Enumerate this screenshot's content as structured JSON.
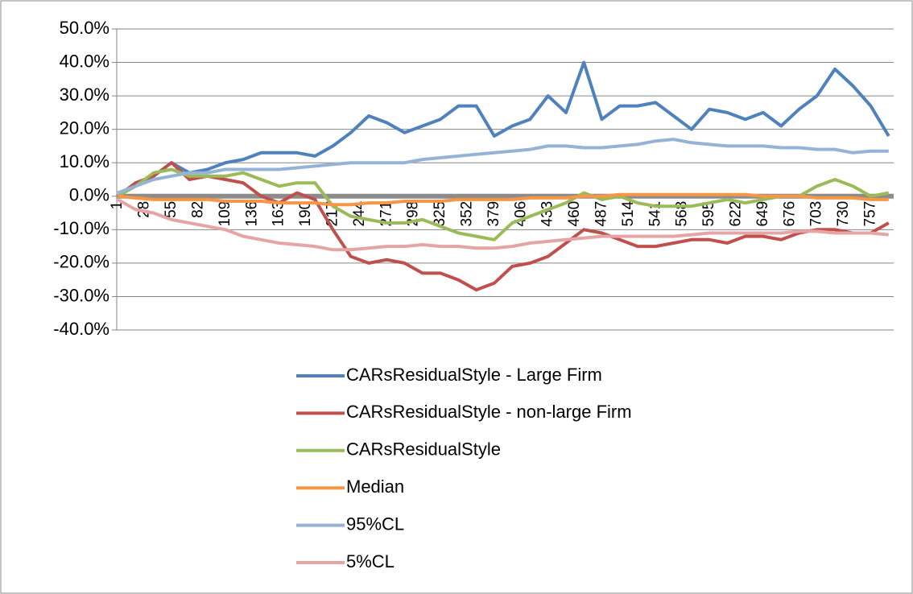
{
  "chart_data": {
    "type": "line",
    "x": [
      1,
      19,
      37,
      55,
      73,
      91,
      109,
      127,
      145,
      163,
      181,
      199,
      217,
      235,
      253,
      271,
      289,
      307,
      325,
      343,
      361,
      379,
      397,
      415,
      433,
      451,
      469,
      487,
      505,
      523,
      541,
      559,
      577,
      595,
      613,
      631,
      649,
      667,
      685,
      703,
      721,
      739,
      757,
      775
    ],
    "xlim": [
      0,
      780
    ],
    "xticks": [
      1,
      28,
      55,
      82,
      109,
      136,
      163,
      190,
      217,
      244,
      271,
      298,
      325,
      352,
      379,
      406,
      433,
      460,
      487,
      514,
      541,
      568,
      595,
      622,
      649,
      676,
      703,
      730,
      757
    ],
    "ylim": [
      -40,
      50
    ],
    "yticks": [
      {
        "value": 50,
        "label": "50.0%"
      },
      {
        "value": 40,
        "label": "40.0%"
      },
      {
        "value": 30,
        "label": "30.0%"
      },
      {
        "value": 20,
        "label": "20.0%"
      },
      {
        "value": 10,
        "label": "10.0%"
      },
      {
        "value": 0,
        "label": "0.0%"
      },
      {
        "value": -10,
        "label": "-10.0%"
      },
      {
        "value": -20,
        "label": "-20.0%"
      },
      {
        "value": -30,
        "label": "-30.0%"
      },
      {
        "value": -40,
        "label": "-40.0%"
      }
    ],
    "grid": true,
    "legend": "bottom",
    "series": [
      {
        "name": "CARsResidualStyle - Large Firm",
        "color": "#4f81bd",
        "values": [
          0,
          4,
          6,
          10,
          7,
          8,
          10,
          11,
          13,
          13,
          13,
          12,
          15,
          19,
          24,
          22,
          19,
          21,
          23,
          27,
          27,
          18,
          21,
          23,
          30,
          25,
          40,
          23,
          27,
          27,
          28,
          24,
          20,
          26,
          25,
          23,
          25,
          21,
          26,
          30,
          38,
          33,
          27,
          18
        ]
      },
      {
        "name": "CARsResidualStyle - non-large Firm",
        "color": "#c0504d",
        "values": [
          0,
          4,
          6,
          10,
          5,
          6,
          5,
          4,
          0,
          -2,
          1,
          -1,
          -10,
          -18,
          -20,
          -19,
          -20,
          -23,
          -23,
          -25,
          -28,
          -26,
          -21,
          -20,
          -18,
          -14,
          -10,
          -11,
          -13,
          -15,
          -15,
          -14,
          -13,
          -13,
          -14,
          -12,
          -12,
          -13,
          -11,
          -10,
          -10,
          -11,
          -11,
          -8
        ]
      },
      {
        "name": "CARsResidualStyle",
        "color": "#9bbb59",
        "values": [
          0,
          3,
          7,
          8,
          6,
          6,
          6,
          7,
          5,
          3,
          4,
          4,
          -3,
          -6,
          -7,
          -8,
          -8,
          -7,
          -9,
          -11,
          -12,
          -13,
          -8,
          -6,
          -4,
          -2,
          1,
          -1,
          0,
          -2,
          -3,
          -3,
          -3,
          -2,
          -1,
          -2,
          -1,
          0,
          0,
          3,
          5,
          3,
          0,
          1
        ]
      },
      {
        "name": "Median",
        "color": "#f79646",
        "values": [
          0,
          -0.5,
          -1,
          -1,
          -1,
          -1,
          -1.5,
          -1.5,
          -1.5,
          -2,
          -2,
          -2,
          -2.5,
          -2.5,
          -2,
          -2,
          -1.5,
          -1.5,
          -1.5,
          -1,
          -1,
          -1,
          -1,
          -0.5,
          -0.5,
          -0.5,
          0,
          0,
          0.5,
          0.5,
          0.5,
          0.5,
          0.5,
          0.5,
          0.5,
          0.5,
          0,
          0,
          0,
          -0.5,
          -0.5,
          -0.5,
          -1,
          -1
        ]
      },
      {
        "name": "95%CL",
        "color": "#95b3d7",
        "values": [
          1,
          3,
          5,
          6,
          7,
          7,
          8,
          8,
          8,
          8,
          8.5,
          9,
          9.5,
          10,
          10,
          10,
          10,
          11,
          11.5,
          12,
          12.5,
          13,
          13.5,
          14,
          15,
          15,
          14.5,
          14.5,
          15,
          15.5,
          16.5,
          17,
          16,
          15.5,
          15,
          15,
          15,
          14.5,
          14.5,
          14,
          14,
          13,
          13.5,
          13.5
        ]
      },
      {
        "name": "5%CL",
        "color": "#e6a5a5",
        "values": [
          -1,
          -4,
          -5,
          -7,
          -8,
          -9,
          -10,
          -12,
          -13,
          -14,
          -14.5,
          -15,
          -16,
          -16,
          -15.5,
          -15,
          -15,
          -14.5,
          -15,
          -15,
          -15.5,
          -15.5,
          -15,
          -14,
          -13.5,
          -13,
          -12.5,
          -12,
          -12,
          -12,
          -12,
          -12,
          -11.5,
          -11,
          -11,
          -11,
          -11,
          -11,
          -10.5,
          -10.5,
          -11,
          -11,
          -11,
          -11.5
        ]
      }
    ]
  }
}
